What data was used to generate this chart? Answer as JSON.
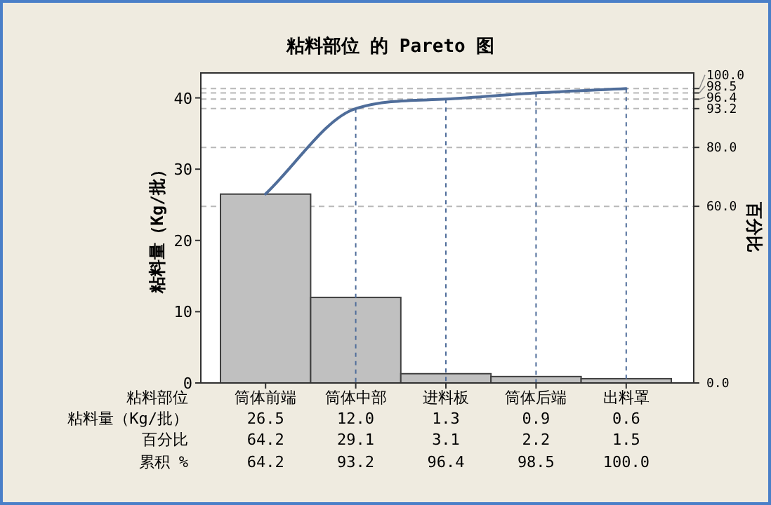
{
  "chart_data": {
    "type": "bar",
    "title": "粘料部位 的 Pareto 图",
    "xlabel": "粘料部位",
    "ylabel": "粘料量（Kg/批）",
    "y2label": "百分比",
    "categories": [
      "筒体前端",
      "筒体中部",
      "进料板",
      "筒体后端",
      "出料罩"
    ],
    "series": [
      {
        "name": "粘料量（Kg/批）",
        "color": "#c0c0c0",
        "values": [
          26.5,
          12.0,
          1.3,
          0.9,
          0.6
        ],
        "value_labels": [
          "26.5",
          "12.0",
          "1.3",
          "0.9",
          "0.6"
        ]
      },
      {
        "type": "line",
        "axis": "y2",
        "color": "#4f6d9a",
        "values": [
          64.2,
          93.2,
          96.4,
          98.5,
          100.0
        ],
        "value_labels": [
          "64.2",
          "93.2",
          "96.4",
          "98.5",
          "100.0"
        ]
      }
    ],
    "annotations": [
      "百分比",
      "64.2",
      "29.1",
      "3.1",
      "2.2",
      "1.5",
      "累积 %"
    ],
    "ylim": [
      0,
      43.5
    ],
    "yticks": [
      0,
      10,
      20,
      30,
      40
    ],
    "y2lim": [
      0,
      105.3
    ],
    "y2ticks": [
      {
        "value": 0,
        "label": "0.0"
      },
      {
        "value": 60,
        "label": "60.0"
      },
      {
        "value": 80,
        "label": "80.0"
      },
      {
        "value": 93.2,
        "label": "93.2"
      },
      {
        "value": 96.4,
        "label": "96.4"
      },
      {
        "value": 98.5,
        "label": "98.5"
      },
      {
        "value": 100,
        "label": "100.0"
      }
    ],
    "grid": true,
    "legend": false,
    "line_style": "solid",
    "marker": "none"
  }
}
